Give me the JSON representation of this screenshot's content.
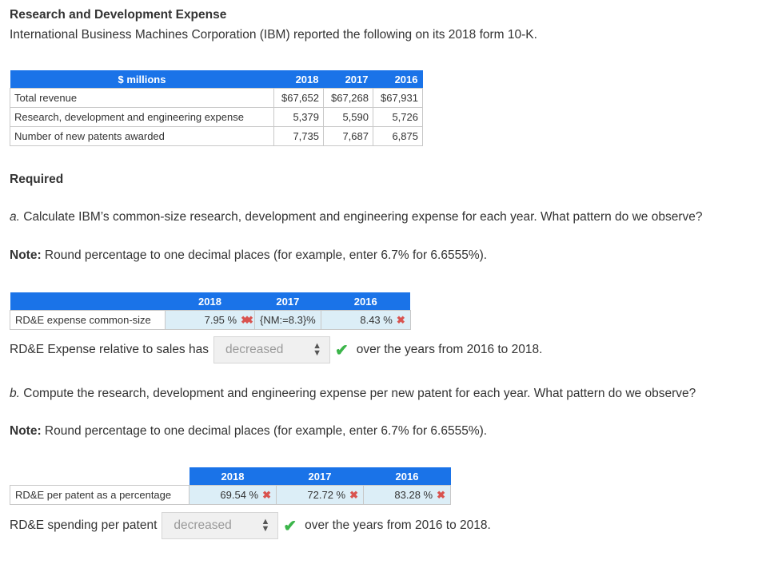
{
  "header": {
    "title": "Research and Development Expense",
    "subtitle": "International Business Machines Corporation (IBM) reported the following on its 2018 form 10-K."
  },
  "data_table": {
    "columns": [
      "$ millions",
      "2018",
      "2017",
      "2016"
    ],
    "rows": [
      {
        "label": "Total revenue",
        "values": [
          "$67,652",
          "$67,268",
          "$67,931"
        ]
      },
      {
        "label": "Research, development and engineering expense",
        "values": [
          "5,379",
          "5,590",
          "5,726"
        ]
      },
      {
        "label": "Number of new patents awarded",
        "values": [
          "7,735",
          "7,687",
          "6,875"
        ]
      }
    ]
  },
  "required_heading": "Required",
  "part_a": {
    "prefix": "a.",
    "question": " Calculate IBM’s common-size research, development and engineering expense for each year. What pattern do we observe?",
    "note_label": "Note:",
    "note_text": " Round percentage to one decimal places (for example, enter 6.7% for 6.6555%).",
    "table": {
      "columns": [
        "2018",
        "2017",
        "2016"
      ],
      "row_label": "RD&E expense common-size",
      "answers": [
        "7.95 %",
        "{NM:=8.3}%",
        "8.43 %"
      ]
    },
    "sentence_before": "RD&E Expense relative to sales has",
    "select_value": "decreased",
    "sentence_after": "over the years from 2016 to 2018."
  },
  "part_b": {
    "prefix": "b.",
    "question": " Compute the research, development and engineering expense per new patent for each year. What pattern do we observe?",
    "note_label": "Note:",
    "note_text": " Round percentage to one decimal places (for example, enter 6.7% for 6.6555%).",
    "table": {
      "columns": [
        "2018",
        "2017",
        "2016"
      ],
      "row_label": "RD&E per patent as a percentage",
      "answers": [
        "69.54 %",
        "72.72 %",
        "83.28 %"
      ]
    },
    "sentence_before": "RD&E spending per patent",
    "select_value": "decreased",
    "sentence_after": "over the years from 2016 to 2018."
  },
  "icons": {
    "incorrect": "x-mark-icon",
    "correct": "check-icon",
    "select": "up-down-arrows-icon"
  },
  "colors": {
    "header_blue": "#1a73e8",
    "answer_cell": "#dceef7",
    "incorrect_red": "#d9534f",
    "correct_green": "#3bb54a"
  }
}
